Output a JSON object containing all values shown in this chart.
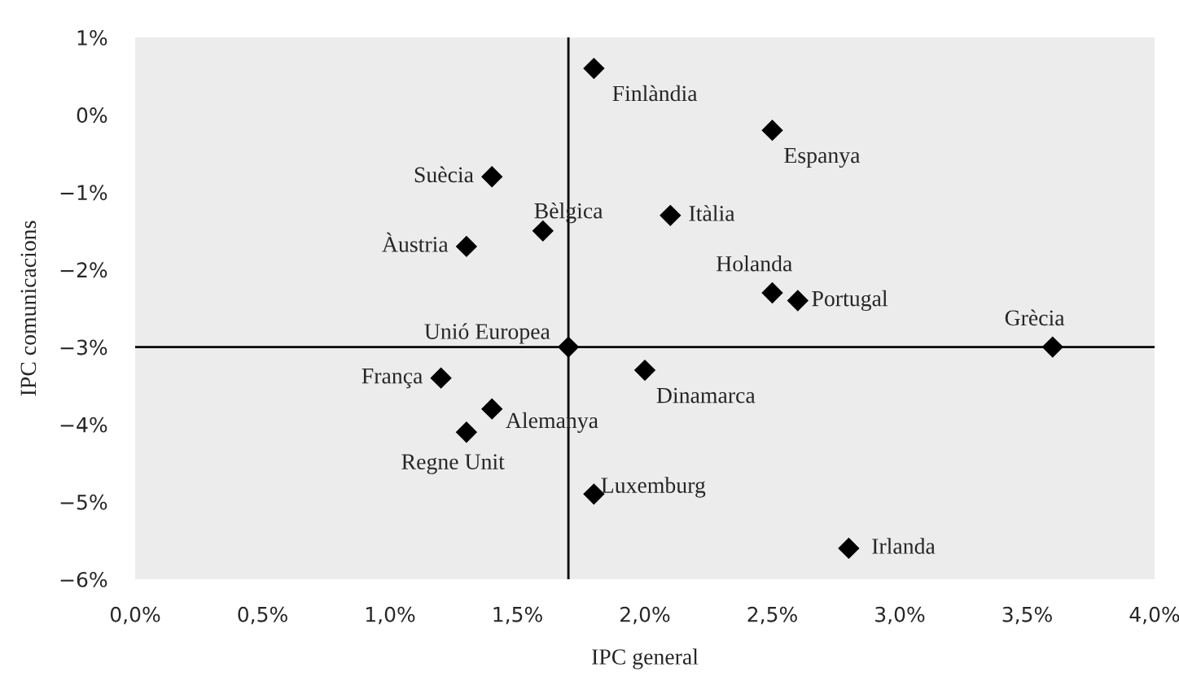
{
  "chart_data": {
    "type": "scatter",
    "xlabel": "IPC general",
    "ylabel": "IPC comunicacions",
    "x": [
      1.8,
      2.5,
      1.4,
      2.1,
      1.6,
      1.3,
      2.5,
      2.6,
      1.7,
      3.6,
      1.2,
      2.0,
      1.4,
      1.3,
      1.8,
      2.8
    ],
    "series": [
      {
        "color": "#000000",
        "values": [
          0.6,
          -0.2,
          -0.8,
          -1.3,
          -1.5,
          -1.7,
          -2.3,
          -2.4,
          -3.0,
          -3.0,
          -3.4,
          -3.3,
          -3.8,
          -4.1,
          -4.9,
          -5.6
        ]
      }
    ],
    "marker": "diamond",
    "grid": false,
    "legend": false,
    "xlim": [
      0,
      4
    ],
    "ylim": [
      -6,
      1
    ],
    "xticks": [
      {
        "value": 0,
        "label": "0,0%"
      },
      {
        "value": 0.5,
        "label": "0,5%"
      },
      {
        "value": 1,
        "label": "1,0%"
      },
      {
        "value": 1.5,
        "label": "1,5%"
      },
      {
        "value": 2,
        "label": "2,0%"
      },
      {
        "value": 2.5,
        "label": "2,5%"
      },
      {
        "value": 3,
        "label": "3,0%"
      },
      {
        "value": 3.5,
        "label": "3,5%"
      },
      {
        "value": 4,
        "label": "4,0%"
      }
    ],
    "yticks": [
      {
        "value": -6,
        "label": "−6%"
      },
      {
        "value": -5,
        "label": "−5%"
      },
      {
        "value": -4,
        "label": "−4%"
      },
      {
        "value": -3,
        "label": "−3%"
      },
      {
        "value": -2,
        "label": "−2%"
      },
      {
        "value": -1,
        "label": "−1%"
      },
      {
        "value": 0,
        "label": "0%"
      },
      {
        "value": 1,
        "label": "1%"
      }
    ],
    "ref_lines": [
      {
        "axis": "x",
        "value": 1.7,
        "color": "#000000"
      },
      {
        "axis": "y",
        "value": -3,
        "color": "#000000"
      }
    ],
    "annotations": [
      {
        "text": "Finlàndia",
        "x": 1.8,
        "y": 0.6
      },
      {
        "text": "Espanya",
        "x": 2.5,
        "y": -0.2
      },
      {
        "text": "Suècia",
        "x": 1.4,
        "y": -0.8
      },
      {
        "text": "Itàlia",
        "x": 2.1,
        "y": -1.3
      },
      {
        "text": "Bèlgica",
        "x": 1.6,
        "y": -1.5
      },
      {
        "text": "Àustria",
        "x": 1.3,
        "y": -1.7
      },
      {
        "text": "Holanda",
        "x": 2.5,
        "y": -2.3
      },
      {
        "text": "Portugal",
        "x": 2.6,
        "y": -2.4
      },
      {
        "text": "Unió Europea",
        "x": 1.7,
        "y": -3.0
      },
      {
        "text": "Grècia",
        "x": 3.6,
        "y": -3.0
      },
      {
        "text": "França",
        "x": 1.2,
        "y": -3.4
      },
      {
        "text": "Dinamarca",
        "x": 2.0,
        "y": -3.3
      },
      {
        "text": "Alemanya",
        "x": 1.4,
        "y": -3.8
      },
      {
        "text": "Regne Unit",
        "x": 1.3,
        "y": -4.1
      },
      {
        "text": "Luxemburg",
        "x": 1.8,
        "y": -4.9
      },
      {
        "text": "Irlanda",
        "x": 2.8,
        "y": -5.6
      }
    ]
  }
}
